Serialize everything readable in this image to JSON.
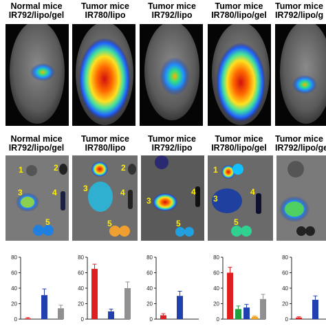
{
  "top_row": {
    "labels": [
      [
        "Normal mice",
        "IR792/lipo/gel"
      ],
      [
        "Tumor mice",
        "IR780/lipo"
      ],
      [
        "Tumor mice",
        "IR792/lipo"
      ],
      [
        "Tumor mice",
        "IR780/lipo/gel"
      ],
      [
        "Tumor mice",
        "IR792/lipo/g"
      ]
    ]
  },
  "middle_row": {
    "labels": [
      [
        "Normal mice",
        "IR792/lipo/gel"
      ],
      [
        "Tumor mice",
        "IR780/lipo"
      ],
      [
        "Tumor mice",
        "IR792/lipo"
      ],
      [
        "Tumor mice",
        "IR780/lipo/gel"
      ],
      [
        "Tumor mice",
        "IR792/lipo/ge"
      ]
    ],
    "organ_numbers": [
      "1",
      "2",
      "3",
      "4",
      "5"
    ]
  },
  "colors": {
    "red": "#e02020",
    "green": "#20a040",
    "blue": "#2040b0",
    "orange": "#f0a020",
    "gray": "#909090"
  },
  "chart_data": [
    {
      "type": "bar",
      "ylim": [
        0,
        80
      ],
      "yticks": [
        "0",
        "20",
        "40",
        "60",
        "80"
      ],
      "values": [
        1,
        0,
        31,
        0,
        14
      ],
      "errors": [
        1,
        0,
        8,
        0,
        4
      ],
      "colors": [
        "red",
        "green",
        "blue",
        "orange",
        "gray"
      ]
    },
    {
      "type": "bar",
      "ylim": [
        0,
        80
      ],
      "yticks": [
        "0",
        "20",
        "40",
        "60",
        "80"
      ],
      "values": [
        65,
        0,
        10,
        0,
        40
      ],
      "errors": [
        6,
        0,
        3,
        0,
        8
      ],
      "colors": [
        "red",
        "green",
        "blue",
        "orange",
        "gray"
      ]
    },
    {
      "type": "bar",
      "ylim": [
        0,
        80
      ],
      "yticks": [
        "0",
        "20",
        "40",
        "60",
        "80"
      ],
      "values": [
        5,
        0,
        30,
        0,
        0
      ],
      "errors": [
        2,
        0,
        6,
        0,
        0
      ],
      "colors": [
        "red",
        "green",
        "blue",
        "orange",
        "gray"
      ]
    },
    {
      "type": "bar",
      "ylim": [
        0,
        80
      ],
      "yticks": [
        "0",
        "20",
        "40",
        "60",
        "80"
      ],
      "values": [
        60,
        13,
        15,
        3,
        26
      ],
      "errors": [
        7,
        4,
        4,
        1,
        6
      ],
      "colors": [
        "red",
        "green",
        "blue",
        "orange",
        "gray"
      ]
    },
    {
      "type": "bar",
      "ylim": [
        0,
        80
      ],
      "yticks": [
        "0",
        "20",
        "40",
        "60",
        "80"
      ],
      "values": [
        2,
        0,
        25,
        0,
        0
      ],
      "errors": [
        1,
        0,
        5,
        0,
        0
      ],
      "colors": [
        "red",
        "green",
        "blue",
        "orange",
        "gray"
      ]
    }
  ]
}
